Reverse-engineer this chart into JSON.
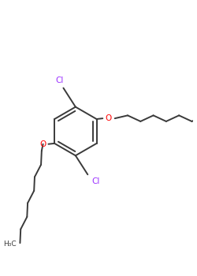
{
  "bg_color": "#ffffff",
  "bond_color": "#3a3a3a",
  "cl_color": "#9b30ff",
  "o_color": "#ff0000",
  "lw": 1.4,
  "figsize": [
    2.5,
    3.5
  ],
  "dpi": 100,
  "xlim": [
    -0.15,
    1.25
  ],
  "ylim": [
    -1.05,
    0.65
  ]
}
